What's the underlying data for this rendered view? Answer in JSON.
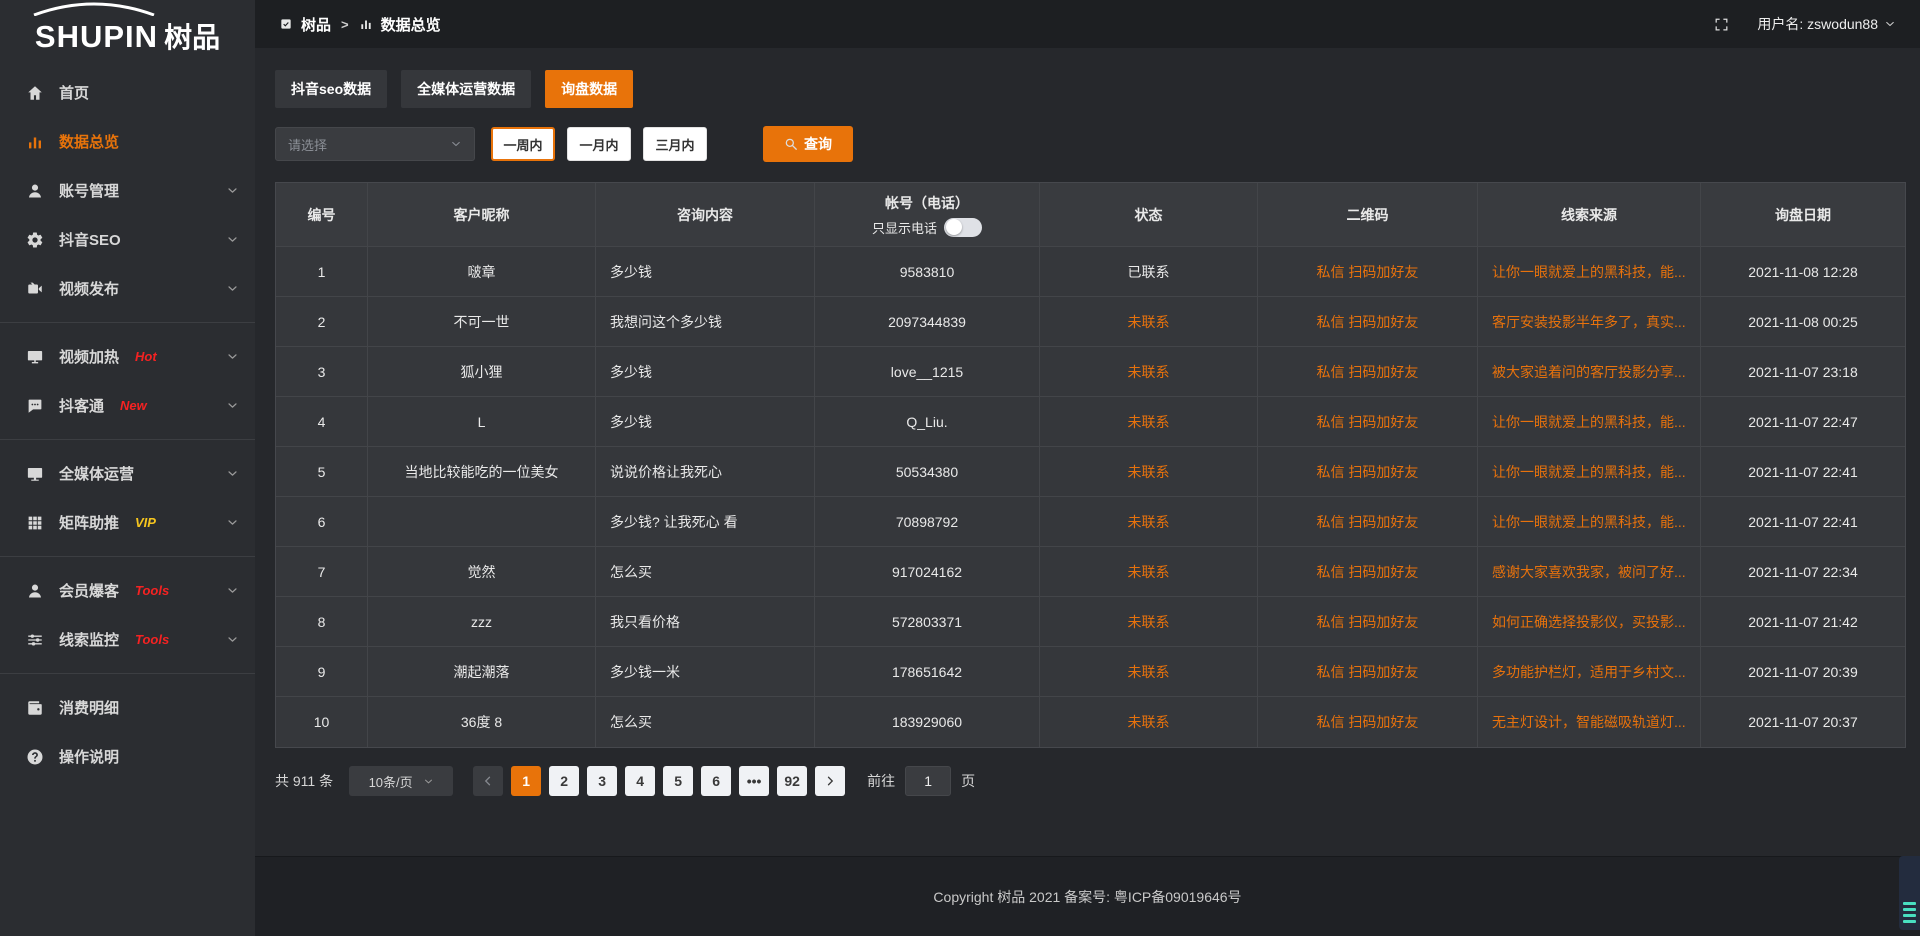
{
  "colors": {
    "accent": "#e8730a",
    "link_orange": "#e8720c",
    "badge_red": "#f52222",
    "badge_yellow": "#f6c51e"
  },
  "logo": {
    "brand_en": "SHUPIN",
    "brand_cn": "树品"
  },
  "header": {
    "breadcrumb_root": "树品",
    "breadcrumb_separator": ">",
    "breadcrumb_current": "数据总览",
    "username_label": "用户名: zswodun88"
  },
  "sidebar": {
    "items": [
      {
        "id": "home",
        "icon": "home",
        "label": "首页"
      },
      {
        "id": "data-overview",
        "icon": "chart",
        "label": "数据总览",
        "active": true
      },
      {
        "id": "account-management",
        "icon": "user",
        "label": "账号管理",
        "chevron": true
      },
      {
        "id": "douyin-seo",
        "icon": "gear",
        "label": "抖音SEO",
        "chevron": true
      },
      {
        "id": "video-publish",
        "icon": "video",
        "label": "视频发布",
        "chevron": true
      },
      {
        "divider": true
      },
      {
        "id": "video-heating",
        "icon": "tv",
        "label": "视频加热",
        "badge": "Hot",
        "badge_color": "#f52222",
        "chevron": true
      },
      {
        "id": "doukoutong",
        "icon": "chat",
        "label": "抖客通",
        "badge": "New",
        "badge_color": "#f52222",
        "chevron": true
      },
      {
        "divider": true
      },
      {
        "id": "omnimedia-operation",
        "icon": "monitor",
        "label": "全媒体运营",
        "chevron": true
      },
      {
        "id": "matrix-boost",
        "icon": "grid",
        "label": "矩阵助推",
        "badge": "VIP",
        "badge_color": "#f6c51e",
        "chevron": true
      },
      {
        "divider": true
      },
      {
        "id": "member-baoke",
        "icon": "member",
        "label": "会员爆客",
        "badge": "Tools",
        "badge_color": "#f52222",
        "chevron": true
      },
      {
        "id": "clue-monitoring",
        "icon": "sliders",
        "label": "线索监控",
        "badge": "Tools",
        "badge_color": "#f52222",
        "chevron": true
      },
      {
        "divider": true
      },
      {
        "id": "consumption-details",
        "icon": "wallet",
        "label": "消费明细"
      },
      {
        "id": "operation-guide",
        "icon": "question",
        "label": "操作说明"
      }
    ]
  },
  "tabs": {
    "active_index": 2,
    "items": [
      {
        "id": "douyin-seo-data",
        "label": "抖音seo数据"
      },
      {
        "id": "omnimedia-data",
        "label": "全媒体运营数据"
      },
      {
        "id": "inquiry-data",
        "label": "询盘数据"
      }
    ]
  },
  "filters": {
    "select_placeholder": "请选择",
    "periods": [
      "一周内",
      "一月内",
      "三月内"
    ],
    "active_period": 0,
    "query_label": "查询"
  },
  "table": {
    "phone_toggle_label": "只显示电话",
    "columns": [
      {
        "key": "no",
        "label": "编号"
      },
      {
        "key": "nickname",
        "label": "客户昵称"
      },
      {
        "key": "content",
        "label": "咨询内容",
        "align": "left"
      },
      {
        "key": "account",
        "label": "帐号（电话）",
        "toggle": true
      },
      {
        "key": "status",
        "label": "状态"
      },
      {
        "key": "qr",
        "label": "二维码"
      },
      {
        "key": "source",
        "label": "线索来源",
        "align": "left"
      },
      {
        "key": "date",
        "label": "询盘日期"
      }
    ],
    "rows": [
      {
        "no": "1",
        "nickname": "啵章",
        "content": "多少钱",
        "account": "9583810",
        "status": "已联系",
        "contacted": true,
        "qr": "私信 扫码加好友",
        "source": "让你一眼就爱上的黑科技，能...",
        "date": "2021-11-08 12:28"
      },
      {
        "no": "2",
        "nickname": "不可一世",
        "content": "我想问这个多少钱",
        "account": "2097344839",
        "status": "未联系",
        "contacted": false,
        "qr": "私信 扫码加好友",
        "source": "客厅安装投影半年多了，真实...",
        "date": "2021-11-08 00:25"
      },
      {
        "no": "3",
        "nickname": "狐小狸",
        "content": "多少钱",
        "account": "love__1215",
        "status": "未联系",
        "contacted": false,
        "qr": "私信 扫码加好友",
        "source": "被大家追着问的客厅投影分享...",
        "date": "2021-11-07 23:18"
      },
      {
        "no": "4",
        "nickname": "L",
        "content": "多少钱",
        "account": "Q_Liu.",
        "status": "未联系",
        "contacted": false,
        "qr": "私信 扫码加好友",
        "source": "让你一眼就爱上的黑科技，能...",
        "date": "2021-11-07 22:47"
      },
      {
        "no": "5",
        "nickname": "当地比较能吃的一位美女",
        "content": "说说价格让我死心",
        "account": "50534380",
        "status": "未联系",
        "contacted": false,
        "qr": "私信 扫码加好友",
        "source": "让你一眼就爱上的黑科技，能...",
        "date": "2021-11-07 22:41"
      },
      {
        "no": "6",
        "nickname": "",
        "content": "多少钱? 让我死心 看",
        "account": "70898792",
        "status": "未联系",
        "contacted": false,
        "qr": "私信 扫码加好友",
        "source": "让你一眼就爱上的黑科技，能...",
        "date": "2021-11-07 22:41"
      },
      {
        "no": "7",
        "nickname": "觉然",
        "content": "怎么买",
        "account": "917024162",
        "status": "未联系",
        "contacted": false,
        "qr": "私信 扫码加好友",
        "source": "感谢大家喜欢我家，被问了好...",
        "date": "2021-11-07 22:34"
      },
      {
        "no": "8",
        "nickname": "zzz",
        "content": "我只看价格",
        "account": "572803371",
        "status": "未联系",
        "contacted": false,
        "qr": "私信 扫码加好友",
        "source": "如何正确选择投影仪，买投影...",
        "date": "2021-11-07 21:42"
      },
      {
        "no": "9",
        "nickname": "潮起潮落",
        "content": "多少钱一米",
        "account": "178651642",
        "status": "未联系",
        "contacted": false,
        "qr": "私信 扫码加好友",
        "source": "多功能护栏灯，适用于乡村文...",
        "date": "2021-11-07 20:39"
      },
      {
        "no": "10",
        "nickname": "36度 8",
        "content": "怎么买",
        "account": "183929060",
        "status": "未联系",
        "contacted": false,
        "qr": "私信 扫码加好友",
        "source": "无主灯设计，智能磁吸轨道灯...",
        "date": "2021-11-07 20:37"
      }
    ]
  },
  "pagination": {
    "total_label": "共 911 条",
    "page_size_label": "10条/页",
    "pages": [
      "1",
      "2",
      "3",
      "4",
      "5",
      "6",
      "•••",
      "92"
    ],
    "active_page": "1",
    "ellipsis": "•••",
    "goto_label": "前往",
    "goto_value": "1",
    "page_unit": "页"
  },
  "footer": {
    "copyright": "Copyright 树品 2021 备案号: 粤ICP备09019646号"
  }
}
